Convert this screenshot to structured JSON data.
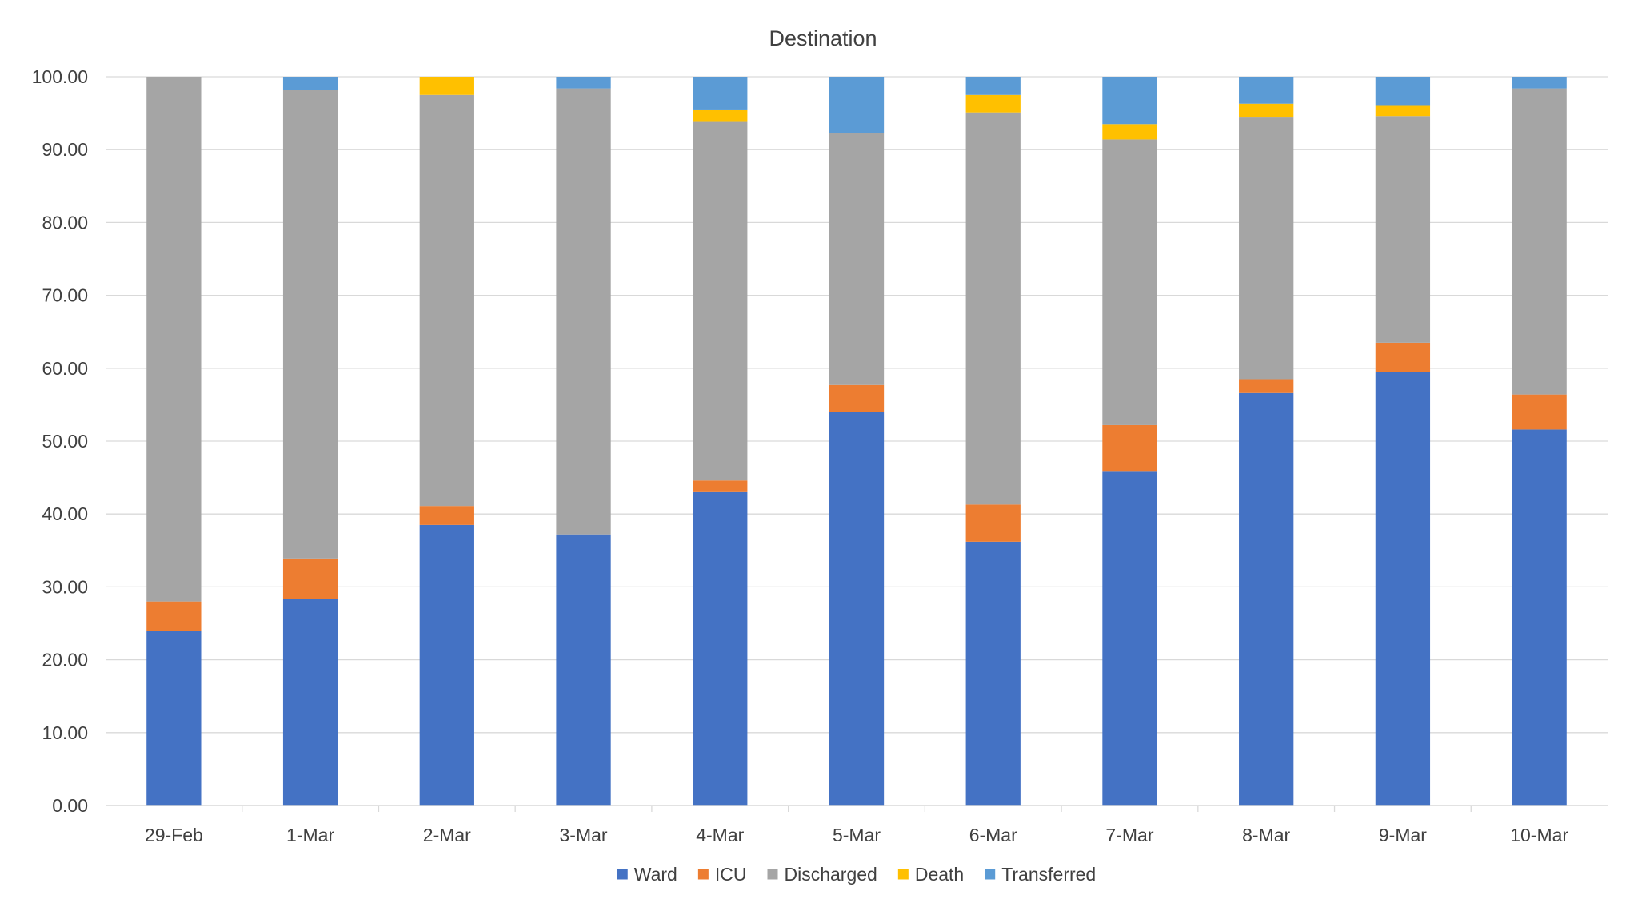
{
  "chart_data": {
    "type": "bar",
    "stacked": true,
    "title": "Destination",
    "xlabel": "",
    "ylabel": "",
    "ylim": [
      0,
      100
    ],
    "ytick_step": 10,
    "ytick_labels": [
      "0.00",
      "10.00",
      "20.00",
      "30.00",
      "40.00",
      "50.00",
      "60.00",
      "70.00",
      "80.00",
      "90.00",
      "100.00"
    ],
    "grid": true,
    "legend_position": "bottom",
    "categories": [
      "29-Feb",
      "1-Mar",
      "2-Mar",
      "3-Mar",
      "4-Mar",
      "5-Mar",
      "6-Mar",
      "7-Mar",
      "8-Mar",
      "9-Mar",
      "10-Mar"
    ],
    "series": [
      {
        "name": "Ward",
        "color": "#4472C4",
        "values": [
          24.0,
          28.3,
          38.5,
          37.2,
          43.0,
          54.0,
          36.2,
          45.8,
          56.6,
          59.5,
          51.6
        ]
      },
      {
        "name": "ICU",
        "color": "#ED7D31",
        "values": [
          4.0,
          5.6,
          2.6,
          0.0,
          1.6,
          3.7,
          5.1,
          6.4,
          1.9,
          4.0,
          4.8
        ]
      },
      {
        "name": "Discharged",
        "color": "#A5A5A5",
        "values": [
          72.0,
          64.3,
          56.4,
          61.2,
          49.2,
          34.6,
          53.8,
          39.2,
          35.9,
          31.1,
          42.0
        ]
      },
      {
        "name": "Death",
        "color": "#FFC000",
        "values": [
          0.0,
          0.0,
          2.5,
          0.0,
          1.6,
          0.0,
          2.4,
          2.1,
          1.9,
          1.4,
          0.0
        ]
      },
      {
        "name": "Transferred",
        "color": "#5B9BD5",
        "values": [
          0.0,
          1.8,
          0.0,
          1.6,
          4.6,
          7.7,
          2.5,
          6.5,
          3.7,
          4.0,
          1.6
        ]
      }
    ]
  }
}
